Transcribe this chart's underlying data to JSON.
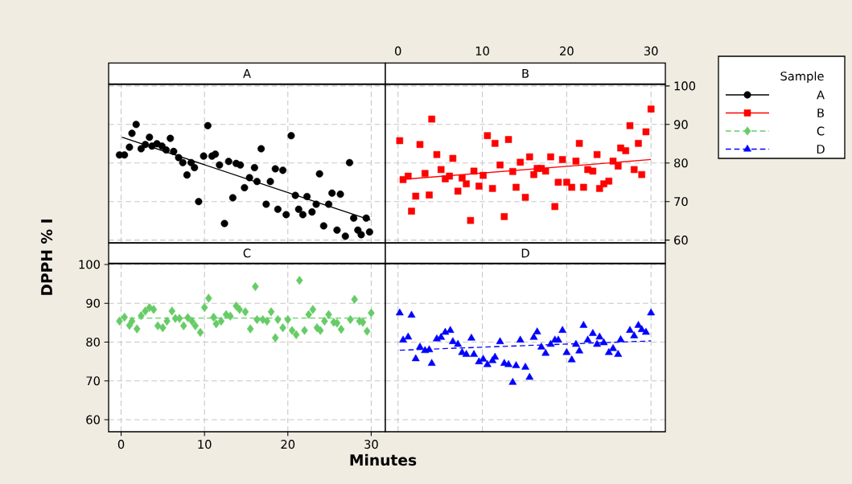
{
  "chart_data": [
    {
      "type": "scatter",
      "title": "A",
      "xlim": [
        -1.5,
        31.7
      ],
      "ylim": [
        59.3,
        100.4
      ],
      "xticks": [
        0,
        10,
        20,
        30
      ],
      "yticks": [
        60,
        70,
        80,
        90,
        100
      ],
      "grid": true,
      "tick_labels": false,
      "series": [
        {
          "name": "A",
          "color": "#000000",
          "marker": "circle",
          "x": [
            -0.2,
            0.4,
            1.0,
            1.3,
            1.8,
            2.4,
            2.9,
            3.4,
            3.7,
            4.3,
            4.9,
            5.4,
            5.9,
            6.3,
            6.9,
            7.4,
            7.9,
            8.4,
            8.8,
            9.3,
            9.9,
            10.4,
            10.9,
            11.3,
            11.8,
            12.4,
            12.9,
            13.4,
            13.8,
            14.3,
            14.8,
            15.4,
            16.0,
            16.3,
            16.8,
            17.4,
            17.9,
            18.5,
            18.8,
            19.4,
            19.8,
            20.4,
            20.9,
            21.3,
            21.8,
            22.3,
            22.9,
            23.4,
            23.8,
            24.3,
            24.9,
            25.3,
            25.9,
            26.3,
            26.9,
            27.4,
            27.9,
            28.4,
            28.8,
            29.4,
            29.8
          ],
          "values": [
            82.1,
            82.1,
            84.1,
            87.7,
            90.0,
            83.7,
            84.8,
            86.7,
            84.4,
            85.0,
            84.4,
            83.4,
            86.4,
            83.0,
            81.4,
            80.1,
            76.9,
            80.1,
            78.8,
            70.0,
            81.8,
            89.7,
            81.8,
            82.3,
            79.5,
            64.3,
            80.4,
            71.0,
            79.9,
            79.5,
            73.6,
            76.2,
            78.8,
            75.2,
            83.7,
            69.3,
            75.2,
            78.5,
            68.0,
            78.1,
            66.6,
            87.1,
            71.6,
            68.0,
            66.6,
            71.3,
            67.3,
            69.3,
            77.2,
            63.7,
            69.3,
            72.2,
            62.6,
            71.9,
            61.0,
            80.1,
            65.7,
            62.6,
            61.4,
            65.7,
            62.1
          ]
        },
        {
          "type": "line",
          "color": "#000000",
          "line_style": "solid",
          "x": [
            0.1,
            29.9
          ],
          "values": [
            86.7,
            65.2
          ]
        }
      ]
    },
    {
      "type": "scatter",
      "title": "B",
      "xlim": [
        -1.5,
        31.7
      ],
      "ylim": [
        59.3,
        100.4
      ],
      "xticks": [
        0,
        10,
        20,
        30
      ],
      "yticks": [
        60,
        70,
        80,
        90,
        100
      ],
      "grid": true,
      "legend": "right",
      "legend_title": "Sample",
      "series": [
        {
          "name": "B",
          "color": "#ff0000",
          "marker": "square",
          "x": [
            0.2,
            0.6,
            1.2,
            1.6,
            2.1,
            2.6,
            3.2,
            3.7,
            4.0,
            4.6,
            5.1,
            5.6,
            6.1,
            6.5,
            7.1,
            7.6,
            8.1,
            8.6,
            9.0,
            9.6,
            10.1,
            10.6,
            11.2,
            11.5,
            12.1,
            12.6,
            13.1,
            13.6,
            14.0,
            14.5,
            15.1,
            15.6,
            16.1,
            16.5,
            17.0,
            17.5,
            18.1,
            18.6,
            19.0,
            19.5,
            20.0,
            20.6,
            21.1,
            21.5,
            22.0,
            22.5,
            23.1,
            23.6,
            23.9,
            24.4,
            25.0,
            25.5,
            26.1,
            26.4,
            27.0,
            27.5,
            28.0,
            28.5,
            28.9,
            29.4,
            30.0
          ],
          "values": [
            85.8,
            75.7,
            76.6,
            67.5,
            71.4,
            84.8,
            77.3,
            71.7,
            91.4,
            82.2,
            78.3,
            75.9,
            76.6,
            81.2,
            72.7,
            76.1,
            74.6,
            65.1,
            77.9,
            74.0,
            76.8,
            87.1,
            73.4,
            85.1,
            79.5,
            66.1,
            86.1,
            77.8,
            73.7,
            80.2,
            71.1,
            81.6,
            77.0,
            78.6,
            78.6,
            77.9,
            81.6,
            68.7,
            75.0,
            80.9,
            75.0,
            73.7,
            80.5,
            85.1,
            73.7,
            78.3,
            77.9,
            82.2,
            73.4,
            74.6,
            75.3,
            80.5,
            79.2,
            83.9,
            83.2,
            89.7,
            78.3,
            85.1,
            77.0,
            88.1,
            94.0
          ]
        },
        {
          "type": "line",
          "color": "#ff0000",
          "line_style": "solid",
          "x": [
            0.2,
            30.0
          ],
          "values": [
            75.7,
            80.9
          ]
        }
      ]
    },
    {
      "type": "scatter",
      "title": "C",
      "xlabel": "Minutes",
      "ylabel": "DPPH % I",
      "xlim": [
        -1.5,
        31.7
      ],
      "ylim": [
        56.9,
        100.2
      ],
      "xticks": [
        0,
        10,
        20,
        30
      ],
      "yticks": [
        60,
        70,
        80,
        90,
        100
      ],
      "grid": true,
      "series": [
        {
          "name": "C",
          "color": "#66cc66",
          "marker": "diamond",
          "x": [
            -0.2,
            0.4,
            1.0,
            1.3,
            1.9,
            2.4,
            2.9,
            3.4,
            3.9,
            4.4,
            5.0,
            5.5,
            6.1,
            6.5,
            7.0,
            7.5,
            8.0,
            8.5,
            8.9,
            9.5,
            10.0,
            10.5,
            11.1,
            11.4,
            12.0,
            12.6,
            13.1,
            13.8,
            14.2,
            14.9,
            15.5,
            16.1,
            16.3,
            17.0,
            17.5,
            18.0,
            18.5,
            18.8,
            19.4,
            20.0,
            20.5,
            21.0,
            21.4,
            22.0,
            22.5,
            23.0,
            23.5,
            23.9,
            24.4,
            24.9,
            25.5,
            25.9,
            26.4,
            27.5,
            28.0,
            28.6,
            29.0,
            29.5,
            30.0
          ],
          "values": [
            85.4,
            86.4,
            84.3,
            85.4,
            83.4,
            86.8,
            88.0,
            88.9,
            88.4,
            84.2,
            83.7,
            85.4,
            88.0,
            86.1,
            86.1,
            84.2,
            86.3,
            85.4,
            84.2,
            82.5,
            88.9,
            91.3,
            86.4,
            84.7,
            85.4,
            87.1,
            86.7,
            89.3,
            88.4,
            87.8,
            83.4,
            94.3,
            85.8,
            85.8,
            85.4,
            87.8,
            81.1,
            85.8,
            83.7,
            85.8,
            83.0,
            81.9,
            95.9,
            83.0,
            87.1,
            88.4,
            83.7,
            83.0,
            85.4,
            87.1,
            85.1,
            84.9,
            83.3,
            85.8,
            91.0,
            85.4,
            85.1,
            82.8,
            87.5
          ]
        },
        {
          "type": "line",
          "color": "#66cc66",
          "line_style": "dashed",
          "x": [
            0.0,
            30.0
          ],
          "values": [
            86.2,
            86.2
          ]
        }
      ]
    },
    {
      "type": "scatter",
      "title": "D",
      "xlim": [
        -1.5,
        31.7
      ],
      "ylim": [
        56.9,
        100.2
      ],
      "xticks": [
        0,
        10,
        20,
        30
      ],
      "yticks": [
        60,
        70,
        80,
        90,
        100
      ],
      "grid": true,
      "tick_labels": false,
      "series": [
        {
          "name": "D",
          "color": "#0000ff",
          "marker": "triangle",
          "x": [
            0.2,
            0.6,
            1.2,
            1.6,
            2.1,
            2.6,
            3.2,
            3.7,
            4.0,
            4.6,
            5.1,
            5.6,
            6.2,
            6.5,
            7.1,
            7.6,
            8.1,
            8.7,
            9.0,
            9.6,
            10.1,
            10.6,
            11.2,
            11.5,
            12.1,
            12.6,
            13.1,
            13.6,
            14.0,
            14.5,
            15.1,
            15.6,
            16.1,
            16.5,
            17.0,
            17.5,
            18.1,
            18.6,
            19.0,
            19.5,
            20.0,
            20.6,
            21.1,
            21.5,
            22.0,
            22.5,
            23.1,
            23.6,
            23.9,
            24.4,
            25.0,
            25.5,
            26.1,
            26.4,
            27.5,
            28.0,
            28.5,
            28.9,
            29.4,
            30.0
          ],
          "values": [
            87.5,
            80.5,
            81.3,
            86.9,
            75.7,
            78.7,
            77.8,
            78.0,
            74.5,
            80.8,
            81.2,
            82.5,
            83.0,
            80.1,
            79.4,
            77.3,
            76.8,
            81.0,
            76.8,
            74.9,
            75.6,
            74.2,
            75.2,
            76.1,
            80.1,
            74.5,
            74.2,
            69.6,
            73.9,
            80.5,
            73.5,
            70.9,
            81.2,
            82.6,
            78.7,
            77.1,
            79.4,
            80.5,
            80.5,
            83.0,
            77.3,
            75.4,
            79.4,
            77.7,
            84.3,
            80.5,
            82.2,
            79.4,
            81.3,
            79.8,
            77.3,
            78.3,
            76.8,
            80.6,
            83.0,
            81.6,
            84.3,
            83.2,
            82.5,
            87.5
          ]
        },
        {
          "type": "line",
          "color": "#0000ff",
          "line_style": "dashed",
          "x": [
            0.2,
            30.0
          ],
          "values": [
            77.9,
            80.3
          ]
        }
      ]
    }
  ]
}
